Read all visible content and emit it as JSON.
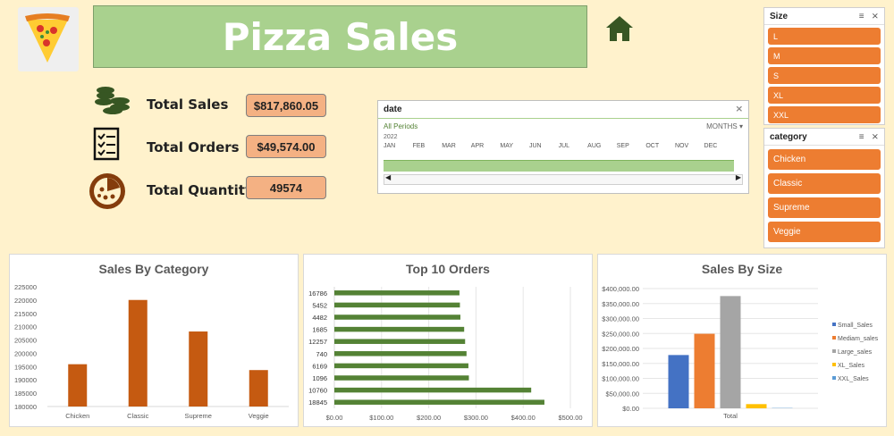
{
  "header": {
    "title": "Pizza Sales"
  },
  "kpis": [
    {
      "label": "Total Sales",
      "value": "$817,860.05"
    },
    {
      "label": "Total Orders",
      "value": "$49,574.00"
    },
    {
      "label": "Total Quantity",
      "value": "49574"
    }
  ],
  "timeline": {
    "title": "date",
    "period_label": "All Periods",
    "level": "MONTHS",
    "year": "2022",
    "months": [
      "JAN",
      "FEB",
      "MAR",
      "APR",
      "MAY",
      "JUN",
      "JUL",
      "AUG",
      "SEP",
      "OCT",
      "NOV",
      "DEC"
    ]
  },
  "size_slicer": {
    "title": "Size",
    "items": [
      "L",
      "M",
      "S",
      "XL",
      "XXL"
    ]
  },
  "category_slicer": {
    "title": "category",
    "items": [
      "Chicken",
      "Classic",
      "Supreme",
      "Veggie"
    ]
  },
  "colors": {
    "bar_orange": "#c55a11",
    "bar_green": "#548235",
    "slicer_orange": "#ed7d31",
    "banner_green": "#a9d18e"
  },
  "chart_data": [
    {
      "type": "bar",
      "title": "Sales By Category",
      "categories": [
        "Chicken",
        "Classic",
        "Supreme",
        "Veggie"
      ],
      "values": [
        195900,
        220050,
        208200,
        193700
      ],
      "ylim": [
        180000,
        225000
      ],
      "yticks": [
        "180000",
        "185000",
        "190000",
        "195000",
        "200000",
        "205000",
        "210000",
        "215000",
        "220000",
        "225000"
      ],
      "grid": false
    },
    {
      "type": "bar",
      "orientation": "horizontal",
      "title": "Top 10 Orders",
      "categories": [
        "16786",
        "5452",
        "4482",
        "1685",
        "12257",
        "740",
        "6169",
        "1096",
        "10760",
        "18845"
      ],
      "values": [
        265,
        266,
        267,
        275,
        277,
        280,
        284,
        285,
        417,
        445
      ],
      "xlim": [
        0,
        500
      ],
      "xticks": [
        "$0.00",
        "$100.00",
        "$200.00",
        "$300.00",
        "$400.00",
        "$500.00"
      ],
      "grid": true
    },
    {
      "type": "bar",
      "title": "Sales By Size",
      "categories": [
        "Total"
      ],
      "series": [
        {
          "name": "Small_Sales",
          "values": [
            178000
          ],
          "color": "#4472c4"
        },
        {
          "name": "Mediam_sales",
          "values": [
            249000
          ],
          "color": "#ed7d31"
        },
        {
          "name": "Large_sales",
          "values": [
            375000
          ],
          "color": "#a5a5a5"
        },
        {
          "name": "XL_Sales",
          "values": [
            14000
          ],
          "color": "#ffc000"
        },
        {
          "name": "XXL_Sales",
          "values": [
            1000
          ],
          "color": "#5b9bd5"
        }
      ],
      "ylim": [
        0,
        400000
      ],
      "yticks": [
        "$0.00",
        "$50,000.00",
        "$100,000.00",
        "$150,000.00",
        "$200,000.00",
        "$250,000.00",
        "$300,000.00",
        "$350,000.00",
        "$400,000.00"
      ],
      "legend": "right",
      "grid": true
    }
  ]
}
